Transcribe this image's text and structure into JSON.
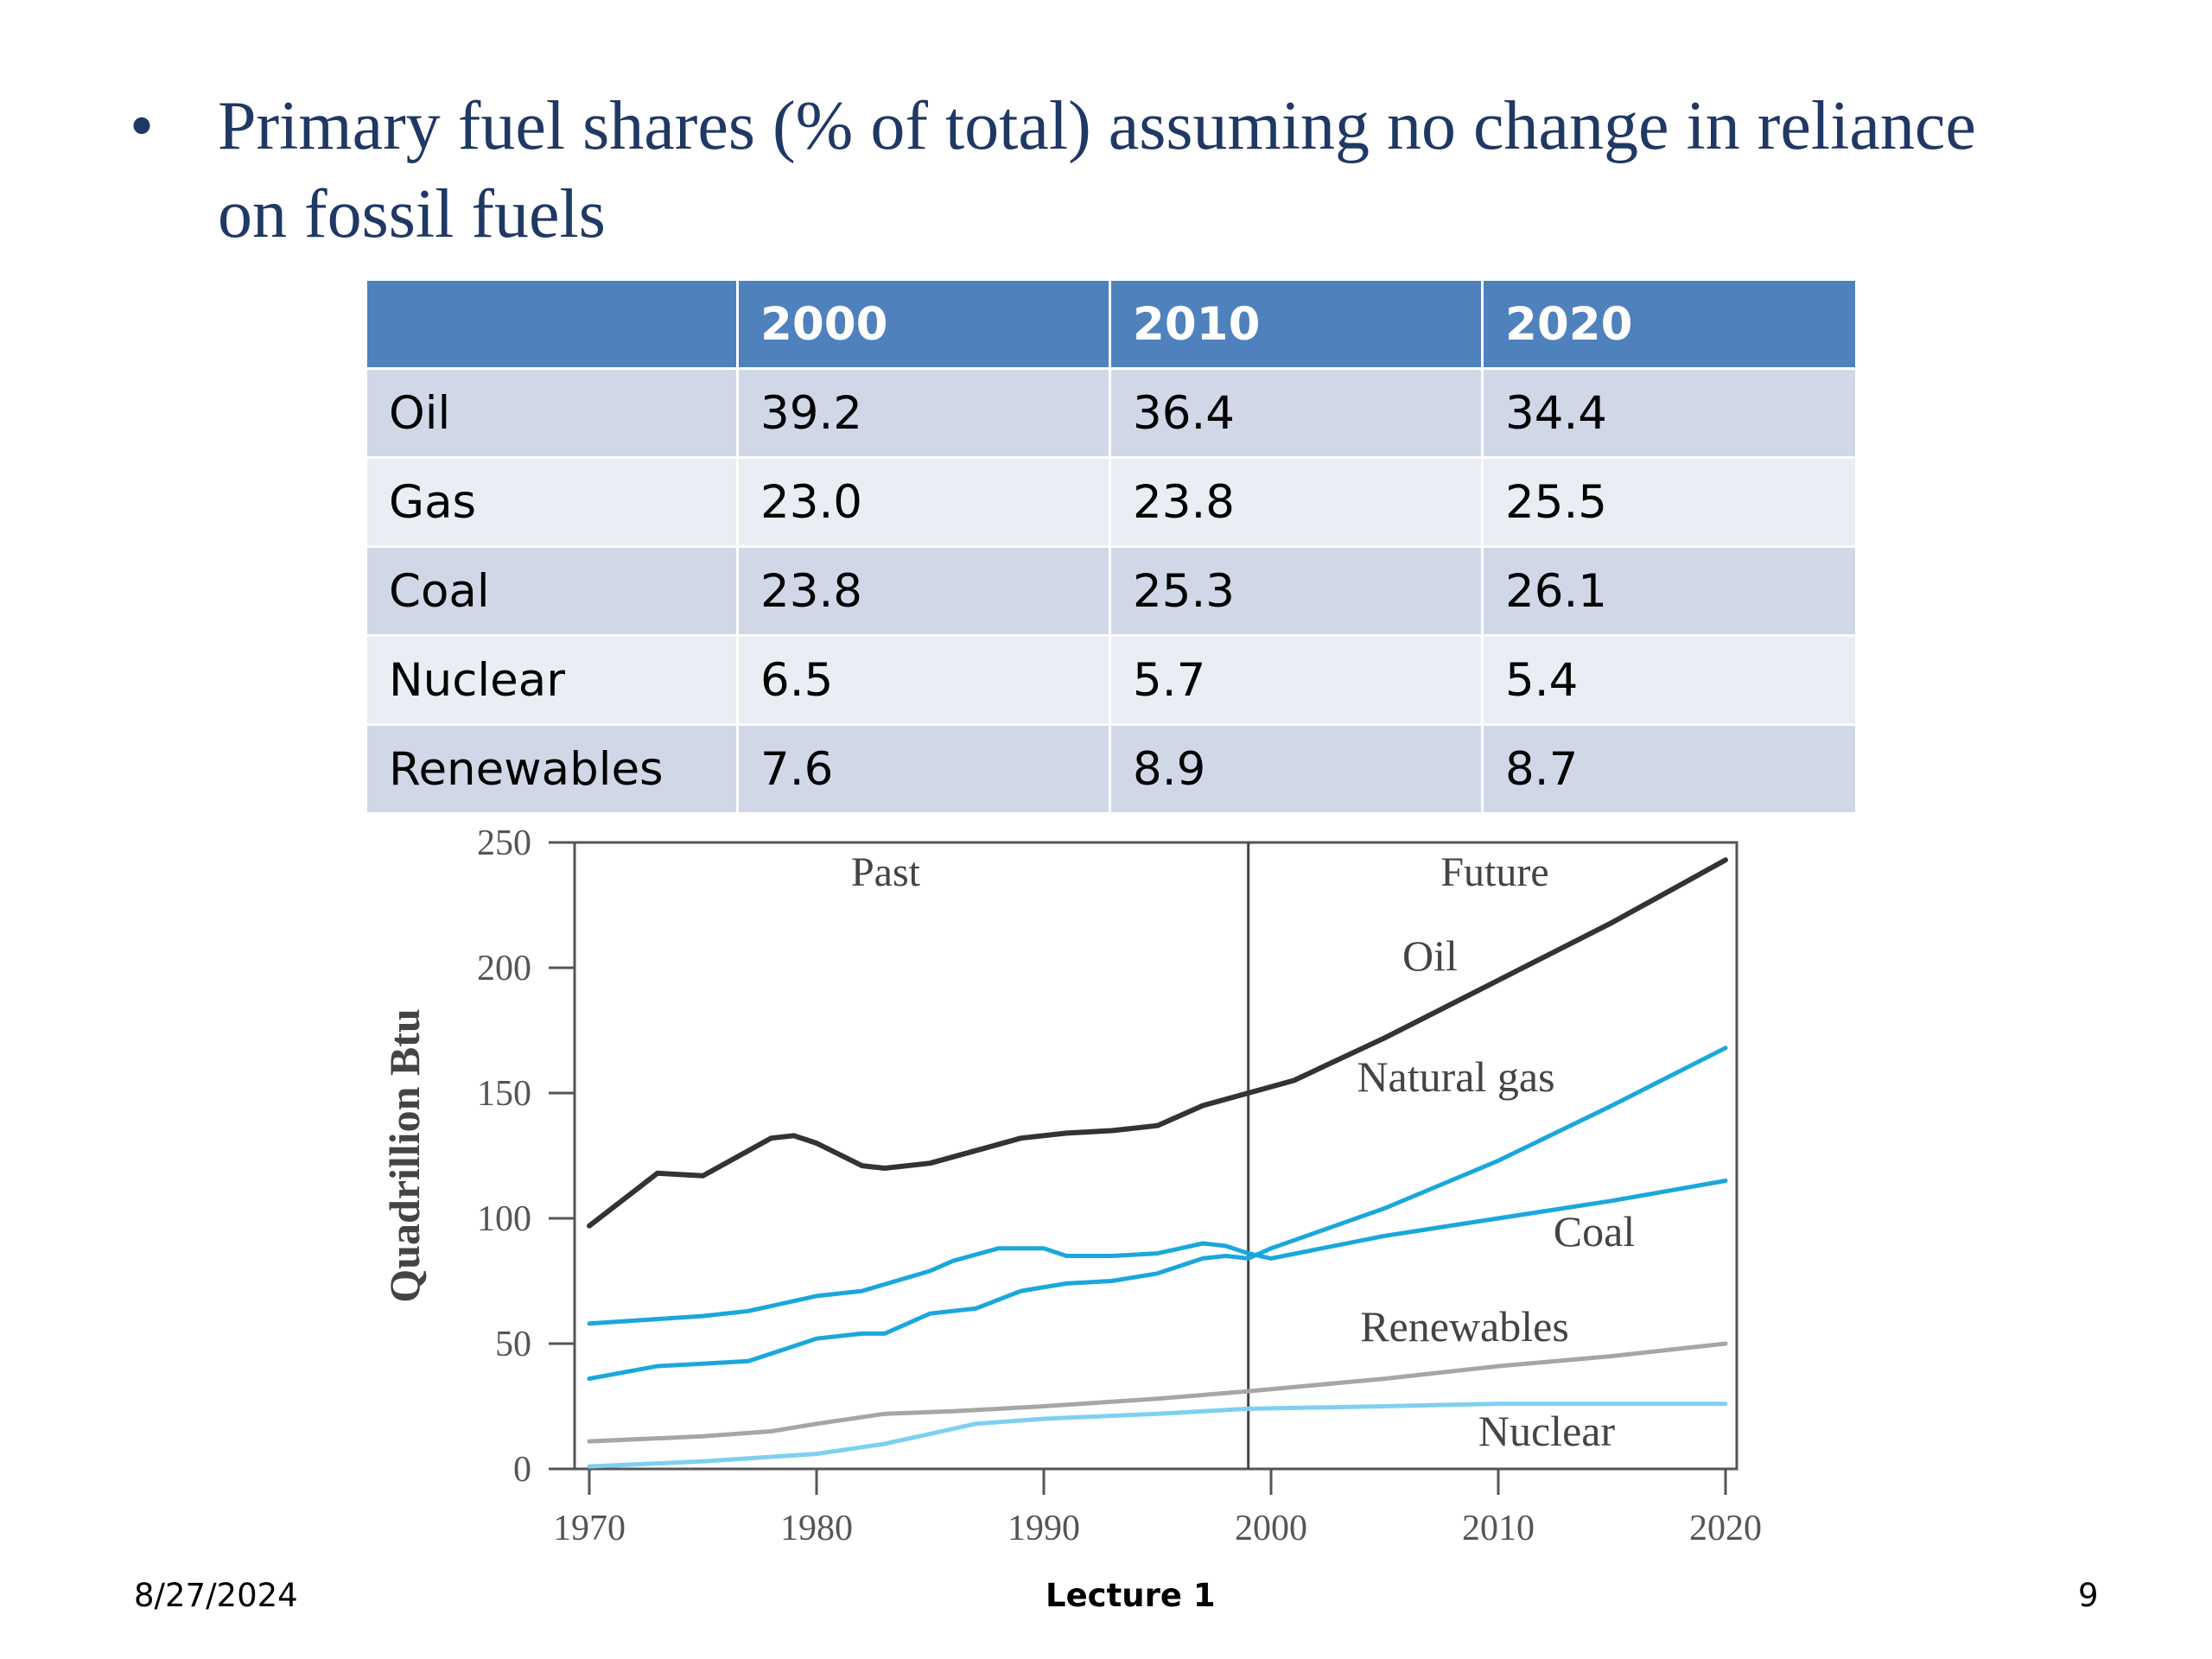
{
  "slide": {
    "bullet": "•",
    "heading": "Primary fuel shares (% of total) assuming no change in reliance on fossil fuels"
  },
  "table": {
    "headers": [
      "",
      "2000",
      "2010",
      "2020"
    ],
    "rows": [
      {
        "label": "Oil",
        "values": [
          "39.2",
          "36.4",
          "34.4"
        ]
      },
      {
        "label": "Gas",
        "values": [
          "23.0",
          "23.8",
          "25.5"
        ]
      },
      {
        "label": "Coal",
        "values": [
          "23.8",
          "25.3",
          "26.1"
        ]
      },
      {
        "label": "Nuclear",
        "values": [
          "6.5",
          "5.7",
          "5.4"
        ]
      },
      {
        "label": "Renewables",
        "values": [
          "7.6",
          "8.9",
          "8.7"
        ]
      }
    ]
  },
  "chart_data": {
    "type": "line",
    "title": "",
    "xlabel": "",
    "ylabel": "Quadrillion Btu",
    "xlim": [
      1970,
      2020
    ],
    "ylim": [
      0,
      250
    ],
    "x_ticks": [
      "1970",
      "1980",
      "1990",
      "2000",
      "2010",
      "2020"
    ],
    "y_ticks": [
      "0",
      "50",
      "100",
      "150",
      "200",
      "250"
    ],
    "divider_x": 1999,
    "region_labels": [
      "Past",
      "Future"
    ],
    "grid": false,
    "legend": "inline labels",
    "series": [
      {
        "name": "Oil",
        "color": "#333333",
        "x": [
          1970,
          1972,
          1973,
          1975,
          1977,
          1978,
          1979,
          1980,
          1982,
          1983,
          1985,
          1987,
          1989,
          1991,
          1993,
          1995,
          1997,
          1999,
          2001,
          2005,
          2010,
          2015,
          2020
        ],
        "y": [
          97,
          111,
          118,
          117,
          127,
          132,
          133,
          130,
          121,
          120,
          122,
          127,
          132,
          134,
          135,
          137,
          145,
          150,
          155,
          172,
          195,
          218,
          243
        ]
      },
      {
        "name": "Natural gas",
        "color": "#1aa7dc",
        "x": [
          1970,
          1973,
          1975,
          1977,
          1980,
          1982,
          1983,
          1985,
          1987,
          1989,
          1991,
          1993,
          1995,
          1997,
          1998,
          1999,
          2000,
          2005,
          2010,
          2015,
          2020
        ],
        "y": [
          36,
          41,
          42,
          43,
          52,
          54,
          54,
          62,
          64,
          71,
          74,
          75,
          78,
          84,
          85,
          84,
          88,
          104,
          123,
          145,
          168
        ]
      },
      {
        "name": "Coal",
        "color": "#1aa7dc",
        "x": [
          1970,
          1975,
          1977,
          1980,
          1982,
          1985,
          1986,
          1988,
          1990,
          1991,
          1993,
          1995,
          1996,
          1997,
          1998,
          1999,
          2000,
          2005,
          2010,
          2015,
          2020
        ],
        "y": [
          58,
          61,
          63,
          69,
          71,
          79,
          83,
          88,
          88,
          85,
          85,
          86,
          88,
          90,
          89,
          86,
          84,
          93,
          100,
          107,
          115
        ]
      },
      {
        "name": "Renewables",
        "color": "#a6a6a6",
        "x": [
          1970,
          1975,
          1978,
          1980,
          1983,
          1986,
          1990,
          1995,
          1999,
          2005,
          2010,
          2015,
          2020
        ],
        "y": [
          11,
          13,
          15,
          18,
          22,
          23,
          25,
          28,
          31,
          36,
          41,
          45,
          50
        ]
      },
      {
        "name": "Nuclear",
        "color": "#7fd0f0",
        "x": [
          1970,
          1975,
          1980,
          1983,
          1985,
          1987,
          1990,
          1995,
          1999,
          2005,
          2010,
          2015,
          2020
        ],
        "y": [
          1,
          3,
          6,
          10,
          14,
          18,
          20,
          22,
          24,
          25,
          26,
          26,
          26
        ]
      }
    ]
  },
  "footer": {
    "date": "8/27/2024",
    "title": "Lecture 1",
    "page": "9"
  }
}
